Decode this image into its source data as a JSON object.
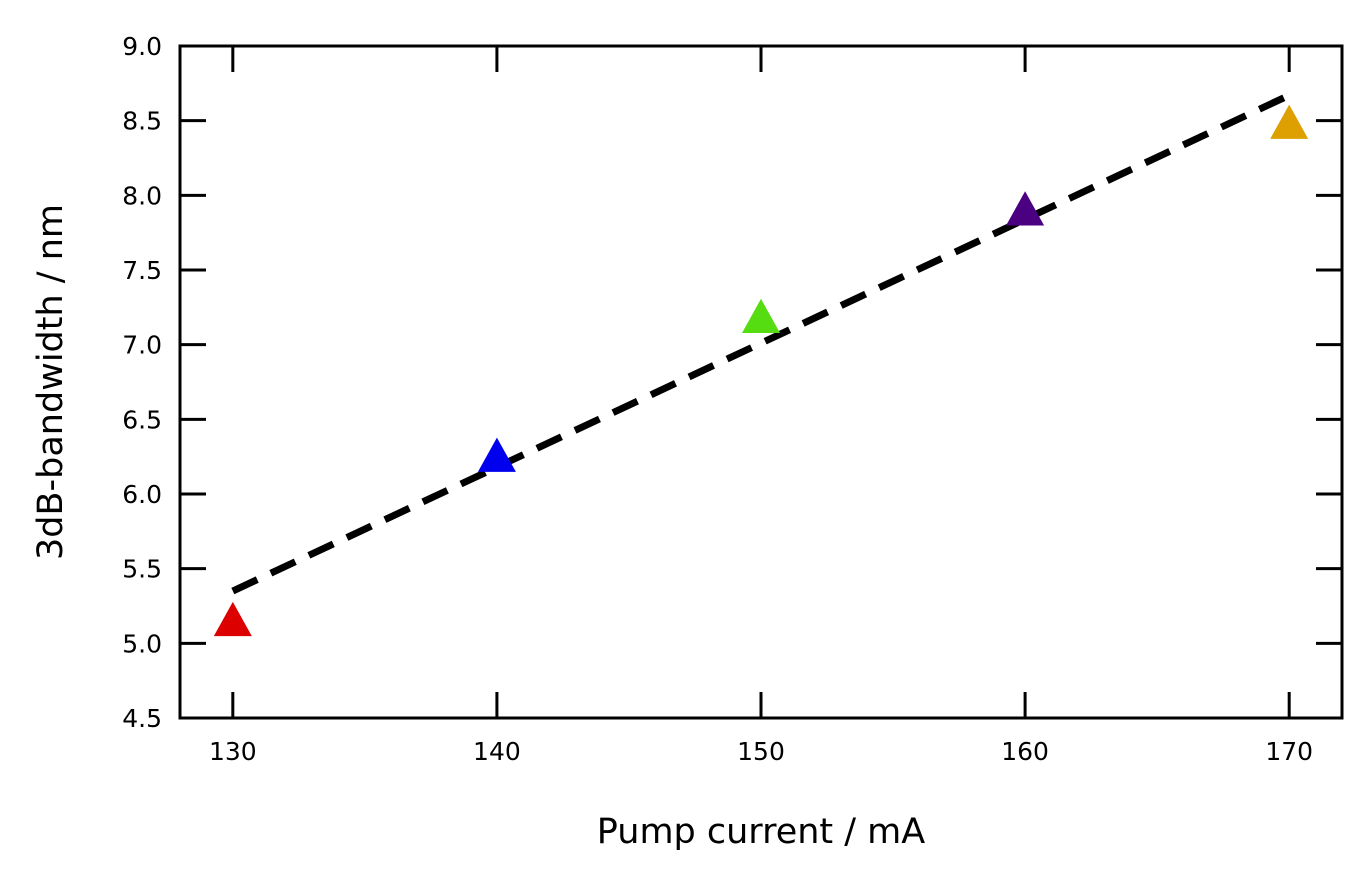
{
  "chart_data": {
    "type": "scatter",
    "title": "",
    "xlabel": "Pump current / mA",
    "ylabel": "3dB-bandwidth / nm",
    "xlim": [
      128,
      172
    ],
    "ylim": [
      4.5,
      9.0
    ],
    "x_ticks": [
      "130",
      "140",
      "150",
      "160",
      "170"
    ],
    "y_ticks": [
      "4.5",
      "5.0",
      "5.5",
      "6.0",
      "6.5",
      "7.0",
      "7.5",
      "8.0",
      "8.5",
      "9.0"
    ],
    "grid": false,
    "legend": "none",
    "marker": "triangle",
    "points": [
      {
        "x": 130,
        "y": 5.15,
        "color": "#dd0000"
      },
      {
        "x": 140,
        "y": 6.25,
        "color": "#0000ee"
      },
      {
        "x": 150,
        "y": 7.18,
        "color": "#55dd11"
      },
      {
        "x": 160,
        "y": 7.9,
        "color": "#4b0082"
      },
      {
        "x": 170,
        "y": 8.48,
        "color": "#dda000"
      }
    ],
    "fit_line": {
      "style": "dashed",
      "color": "#000000",
      "x": [
        130,
        170
      ],
      "y": [
        5.35,
        8.67
      ]
    }
  }
}
